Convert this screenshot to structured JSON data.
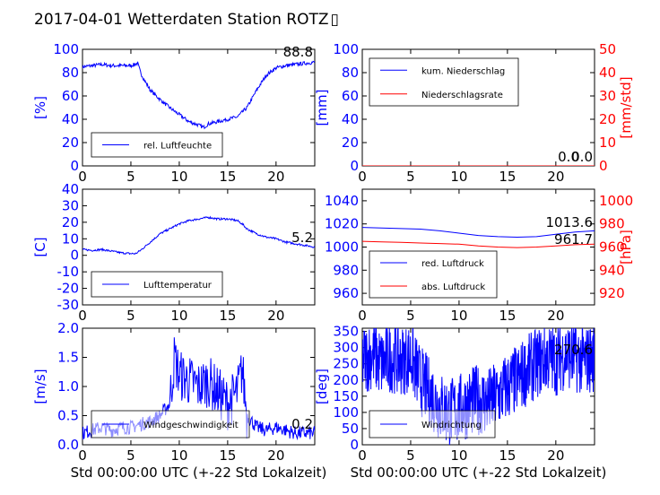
{
  "title": "2017-04-01 Wetterdaten Station ROTZ",
  "title_glyph": "▯",
  "colors": {
    "blue": "#0000ff",
    "red": "#ff0000"
  },
  "chart_data": [
    {
      "type": "line",
      "id": "humidity",
      "ylabel": "[%]",
      "xlabel": "",
      "xlim": [
        0,
        24
      ],
      "ylim": [
        0,
        100
      ],
      "xticks": [
        "0",
        "5",
        "10",
        "15",
        "20"
      ],
      "yticks": [
        "0",
        "20",
        "40",
        "60",
        "80",
        "100"
      ],
      "last_value": "88.8",
      "series": [
        {
          "name": "rel. Luftfeuchte",
          "color": "#0000ff",
          "x": [
            0,
            1,
            2,
            3,
            4,
            5,
            5.7,
            6,
            6.5,
            7,
            8,
            9,
            10,
            11,
            12,
            12.5,
            13,
            14,
            15,
            16,
            17,
            18,
            19,
            20,
            21,
            22,
            23,
            24
          ],
          "y": [
            85,
            86,
            87,
            86,
            86,
            86,
            88,
            80,
            72,
            65,
            57,
            50,
            44,
            38,
            35,
            33,
            36,
            38,
            40,
            42,
            50,
            65,
            78,
            84,
            86,
            87,
            88,
            89
          ]
        }
      ]
    },
    {
      "type": "line",
      "id": "precip",
      "ylabel": "[mm]",
      "ylabel_right": "[mm/std]",
      "xlabel": "",
      "xlim": [
        0,
        24
      ],
      "ylim": [
        0,
        100
      ],
      "ylim_right": [
        0,
        50
      ],
      "xticks": [
        "0",
        "5",
        "10",
        "15",
        "20"
      ],
      "yticks": [
        "0",
        "20",
        "40",
        "60",
        "80",
        "100"
      ],
      "yticks_right": [
        "0",
        "10",
        "20",
        "30",
        "40",
        "50"
      ],
      "last_value": "0.0",
      "last_value_2": "0.0",
      "series": [
        {
          "name": "kum. Niederschlag",
          "color": "#0000ff",
          "x": [
            0,
            24
          ],
          "y": [
            0,
            0
          ]
        },
        {
          "name": "Niederschlagsrate",
          "color": "#ff0000",
          "x": [
            0,
            24
          ],
          "y": [
            0,
            0
          ]
        }
      ]
    },
    {
      "type": "line",
      "id": "temperature",
      "ylabel": "[C]",
      "xlabel": "",
      "xlim": [
        0,
        24
      ],
      "ylim": [
        -30,
        40
      ],
      "xticks": [
        "0",
        "5",
        "10",
        "15",
        "20"
      ],
      "yticks": [
        "-30",
        "-20",
        "-10",
        "0",
        "10",
        "20",
        "30",
        "40"
      ],
      "last_value": "5.2",
      "series": [
        {
          "name": "Lufttemperatur",
          "color": "#0000ff",
          "x": [
            0,
            1,
            2,
            3,
            4,
            5,
            5.5,
            6,
            7,
            8,
            9,
            10,
            11,
            12,
            13,
            14,
            15,
            16,
            16.5,
            17,
            18,
            19,
            20,
            21,
            22,
            23,
            24
          ],
          "y": [
            3.5,
            3,
            3.5,
            2.5,
            1.5,
            1,
            1,
            3,
            8,
            13,
            16,
            19,
            21,
            22,
            23,
            22,
            22,
            21,
            19,
            16,
            13,
            11,
            10,
            8,
            7,
            6,
            5
          ]
        }
      ]
    },
    {
      "type": "line",
      "id": "pressure",
      "ylabel": "",
      "ylabel_right": "[hPa]",
      "xlabel": "",
      "xlim": [
        0,
        24
      ],
      "ylim": [
        950,
        1050
      ],
      "ylim_right": [
        910,
        1010
      ],
      "xticks": [
        "0",
        "5",
        "10",
        "15",
        "20"
      ],
      "yticks": [
        "960",
        "980",
        "1000",
        "1020",
        "1040"
      ],
      "yticks_right": [
        "920",
        "940",
        "960",
        "980",
        "1000"
      ],
      "last_value": "1013.6",
      "last_value_2": "961.7",
      "series": [
        {
          "name": "red. Luftdruck",
          "color": "#0000ff",
          "x": [
            0,
            2,
            4,
            6,
            8,
            10,
            12,
            14,
            16,
            18,
            20,
            22,
            24
          ],
          "y": [
            1017,
            1016.5,
            1016,
            1015.5,
            1014,
            1012,
            1010,
            1009,
            1008.5,
            1009,
            1011,
            1013,
            1014
          ]
        },
        {
          "name": "abs. Luftdruck",
          "color": "#ff0000",
          "x": [
            0,
            2,
            4,
            6,
            8,
            10,
            12,
            14,
            16,
            18,
            20,
            22,
            24
          ],
          "y": [
            1005,
            1004.5,
            1004,
            1003.5,
            1003,
            1002.5,
            1001,
            1000,
            999.5,
            1000,
            1001,
            1002,
            1002.5
          ]
        }
      ]
    },
    {
      "type": "line",
      "id": "wind_speed",
      "ylabel": "[m/s]",
      "xlabel": "Std 00:00:00 UTC (+-22 Std Lokalzeit)",
      "xlim": [
        0,
        24
      ],
      "ylim": [
        0,
        2
      ],
      "xticks": [
        "0",
        "5",
        "10",
        "15",
        "20"
      ],
      "yticks": [
        "0.0",
        "0.5",
        "1.0",
        "1.5",
        "2.0"
      ],
      "last_value": "0.2",
      "series": [
        {
          "name": "Windgeschwindigkeit",
          "color": "#0000ff",
          "x": [
            0,
            1,
            2,
            3,
            4,
            5,
            6,
            7,
            8,
            9,
            9.5,
            10,
            11,
            12,
            13,
            14,
            15,
            16,
            16.5,
            17,
            18,
            19,
            20,
            21,
            22,
            23,
            24
          ],
          "y": [
            0.2,
            0.25,
            0.3,
            0.25,
            0.3,
            0.3,
            0.35,
            0.4,
            0.5,
            0.7,
            1.5,
            1.2,
            1.1,
            1.0,
            1.1,
            0.9,
            0.7,
            0.9,
            1.3,
            0.5,
            0.3,
            0.25,
            0.3,
            0.25,
            0.2,
            0.2,
            0.2
          ]
        }
      ]
    },
    {
      "type": "line",
      "id": "wind_dir",
      "ylabel": "[deg]",
      "xlabel": "Std 00:00:00 UTC (+-22 Std Lokalzeit)",
      "xlim": [
        0,
        24
      ],
      "ylim": [
        0,
        360
      ],
      "xticks": [
        "0",
        "5",
        "10",
        "15",
        "20"
      ],
      "yticks": [
        "0",
        "50",
        "100",
        "150",
        "200",
        "250",
        "300",
        "350"
      ],
      "last_value": "270.6",
      "series": [
        {
          "name": "Windrichtung",
          "color": "#0000ff",
          "x": [
            0,
            1,
            2,
            3,
            4,
            5,
            6,
            7,
            8,
            9,
            10,
            11,
            12,
            13,
            14,
            15,
            16,
            17,
            18,
            19,
            20,
            21,
            22,
            23,
            24
          ],
          "y": [
            260,
            280,
            250,
            270,
            260,
            270,
            200,
            160,
            120,
            100,
            110,
            130,
            140,
            130,
            150,
            180,
            200,
            230,
            250,
            270,
            260,
            280,
            270,
            260,
            270
          ]
        }
      ]
    }
  ]
}
